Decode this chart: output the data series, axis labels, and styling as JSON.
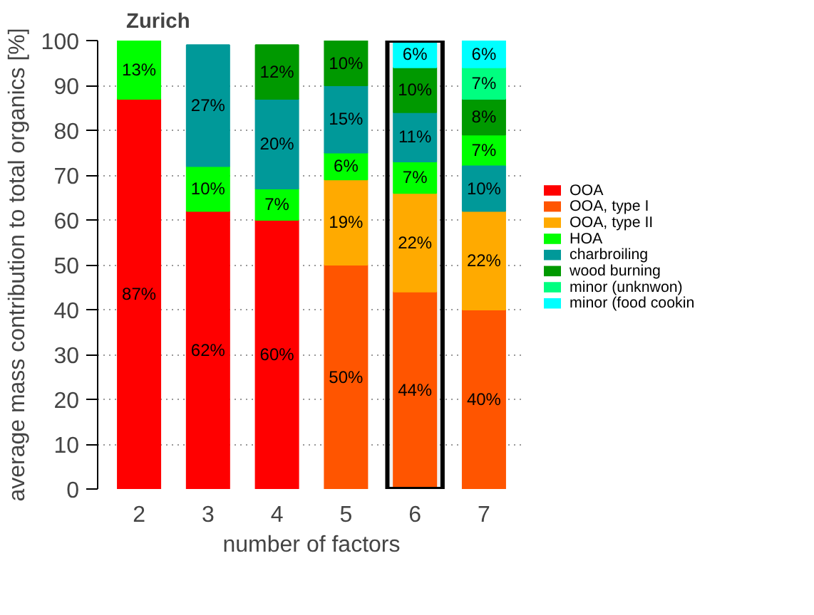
{
  "chart_data": {
    "type": "bar",
    "title": "Zurich",
    "xlabel": "number of factors",
    "ylabel": "average mass contribution to total organics [%]",
    "x": [
      2,
      3,
      4,
      5,
      6,
      7
    ],
    "xlim": [
      1.4,
      7.6
    ],
    "xticks": [
      2,
      3,
      4,
      5,
      6,
      7
    ],
    "ylim": [
      0,
      100
    ],
    "yticks": [
      0,
      10,
      20,
      30,
      40,
      50,
      60,
      70,
      80,
      90,
      100
    ],
    "grid": "y",
    "legend": "right",
    "bands": [
      {
        "axis": "x",
        "from": 5.6,
        "to": 6.4,
        "color": "#000000"
      }
    ],
    "series": [
      {
        "name": "OOA",
        "color": "#ff0000",
        "values": [
          87,
          62,
          60,
          null,
          null,
          null
        ],
        "base": [
          0,
          0,
          0,
          null,
          null,
          null
        ],
        "value_labels": [
          "87%",
          "62%",
          "60%",
          null,
          null,
          null
        ]
      },
      {
        "name": "OOA, type I",
        "color": "#ff5500",
        "values": [
          null,
          null,
          null,
          50,
          44,
          40
        ],
        "base": [
          null,
          null,
          null,
          0,
          0,
          0
        ],
        "value_labels": [
          null,
          null,
          null,
          "50%",
          "44%",
          "40%"
        ]
      },
      {
        "name": "OOA, type II",
        "color": "#ffaa00",
        "values": [
          null,
          null,
          null,
          19,
          22,
          22
        ],
        "base": [
          null,
          null,
          null,
          50,
          44,
          40
        ],
        "value_labels": [
          null,
          null,
          null,
          "19%",
          "22%",
          "22%"
        ]
      },
      {
        "name": "HOA",
        "color": "#00ff00",
        "values": [
          13,
          10,
          7,
          6,
          7,
          7
        ],
        "base": [
          87,
          62,
          60,
          69,
          66,
          72
        ],
        "value_labels": [
          "13%",
          "10%",
          "7%",
          "6%",
          "7%",
          "7%"
        ]
      },
      {
        "name": "charbroiling",
        "color": "#009999",
        "values": [
          null,
          27,
          20,
          15,
          11,
          10
        ],
        "base": [
          null,
          72,
          67,
          75,
          73,
          62
        ],
        "value_labels": [
          null,
          "27%",
          "20%",
          "15%",
          "11%",
          "10%"
        ]
      },
      {
        "name": "wood burning",
        "color": "#009900",
        "values": [
          null,
          null,
          12,
          10,
          10,
          8
        ],
        "base": [
          null,
          null,
          87,
          90,
          84,
          79
        ],
        "value_labels": [
          null,
          null,
          "12%",
          "10%",
          "10%",
          "8%"
        ]
      },
      {
        "name": "minor (unknwon)",
        "color": "#00ff80",
        "values": [
          null,
          null,
          null,
          null,
          null,
          7
        ],
        "base": [
          null,
          null,
          null,
          null,
          null,
          87
        ],
        "value_labels": [
          null,
          null,
          null,
          null,
          null,
          "7%"
        ]
      },
      {
        "name": "minor (food cookin",
        "color": "#00ffff",
        "values": [
          null,
          null,
          null,
          null,
          6,
          6
        ],
        "base": [
          null,
          null,
          null,
          null,
          94,
          94
        ],
        "value_labels": [
          null,
          null,
          null,
          null,
          "6%",
          "6%"
        ]
      }
    ]
  }
}
